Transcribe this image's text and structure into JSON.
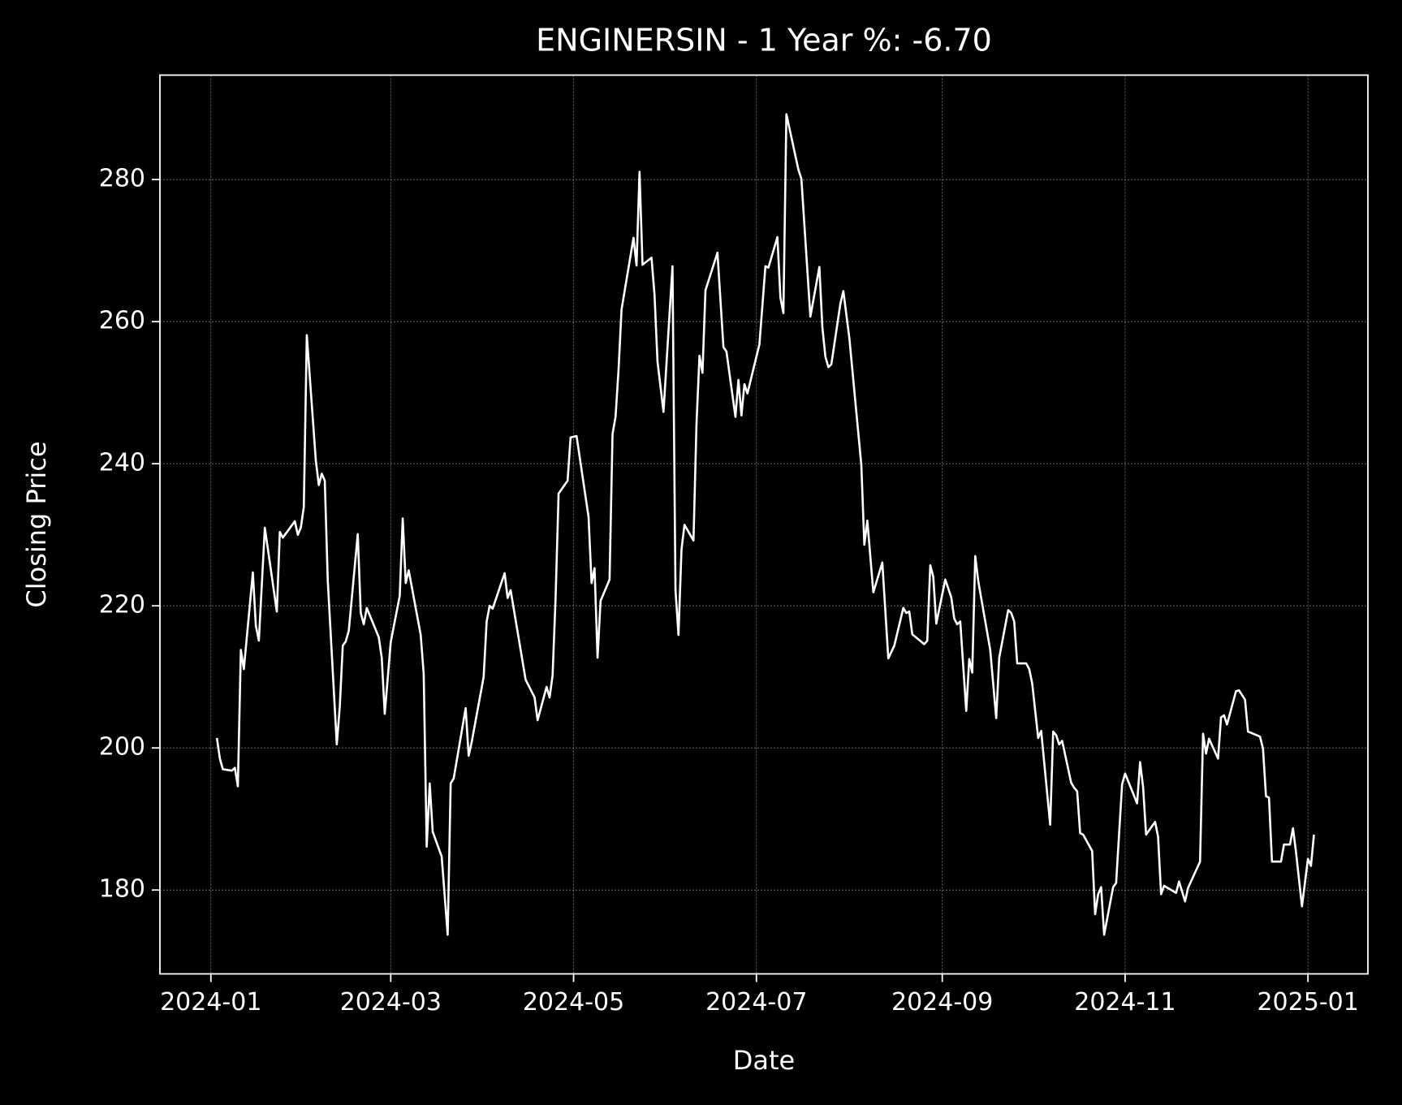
{
  "chart_data": {
    "type": "line",
    "title": "ENGINERSIN - 1 Year %: -6.70",
    "x_label": "Date",
    "y_label": "Closing Price",
    "color": "#ffffff",
    "grid": true,
    "xlim": [
      "2023-12-15",
      "2025-01-21"
    ],
    "xticks": [
      {
        "value": "2024-01-01",
        "label": "2024-01"
      },
      {
        "value": "2024-03-01",
        "label": "2024-03"
      },
      {
        "value": "2024-05-01",
        "label": "2024-05"
      },
      {
        "value": "2024-07-01",
        "label": "2024-07"
      },
      {
        "value": "2024-09-01",
        "label": "2024-09"
      },
      {
        "value": "2024-11-01",
        "label": "2024-11"
      },
      {
        "value": "2025-01-01",
        "label": "2025-01"
      }
    ],
    "ylim": [
      168.2,
      294.7
    ],
    "yticks": [
      180,
      200,
      220,
      240,
      260,
      280
    ],
    "x": [
      "2024-01-03",
      "2024-01-04",
      "2024-01-05",
      "2024-01-08",
      "2024-01-09",
      "2024-01-10",
      "2024-01-11",
      "2024-01-12",
      "2024-01-15",
      "2024-01-16",
      "2024-01-17",
      "2024-01-19",
      "2024-01-23",
      "2024-01-24",
      "2024-01-25",
      "2024-01-29",
      "2024-01-30",
      "2024-01-31",
      "2024-02-01",
      "2024-02-02",
      "2024-02-05",
      "2024-02-06",
      "2024-02-07",
      "2024-02-08",
      "2024-02-09",
      "2024-02-12",
      "2024-02-13",
      "2024-02-14",
      "2024-02-15",
      "2024-02-16",
      "2024-02-19",
      "2024-02-20",
      "2024-02-21",
      "2024-02-22",
      "2024-02-26",
      "2024-02-27",
      "2024-02-28",
      "2024-03-01",
      "2024-03-04",
      "2024-03-05",
      "2024-03-06",
      "2024-03-07",
      "2024-03-11",
      "2024-03-12",
      "2024-03-13",
      "2024-03-14",
      "2024-03-15",
      "2024-03-18",
      "2024-03-20",
      "2024-03-21",
      "2024-03-22",
      "2024-03-26",
      "2024-03-27",
      "2024-03-28",
      "2024-04-01",
      "2024-04-02",
      "2024-04-03",
      "2024-04-04",
      "2024-04-08",
      "2024-04-09",
      "2024-04-10",
      "2024-04-15",
      "2024-04-18",
      "2024-04-19",
      "2024-04-22",
      "2024-04-23",
      "2024-04-24",
      "2024-04-25",
      "2024-04-26",
      "2024-04-29",
      "2024-04-30",
      "2024-05-02",
      "2024-05-06",
      "2024-05-07",
      "2024-05-08",
      "2024-05-09",
      "2024-05-10",
      "2024-05-13",
      "2024-05-14",
      "2024-05-15",
      "2024-05-16",
      "2024-05-17",
      "2024-05-21",
      "2024-05-22",
      "2024-05-23",
      "2024-05-24",
      "2024-05-27",
      "2024-05-28",
      "2024-05-29",
      "2024-05-31",
      "2024-06-03",
      "2024-06-04",
      "2024-06-05",
      "2024-06-06",
      "2024-06-07",
      "2024-06-10",
      "2024-06-11",
      "2024-06-12",
      "2024-06-13",
      "2024-06-14",
      "2024-06-18",
      "2024-06-20",
      "2024-06-21",
      "2024-06-24",
      "2024-06-25",
      "2024-06-26",
      "2024-06-27",
      "2024-06-28",
      "2024-07-02",
      "2024-07-04",
      "2024-07-05",
      "2024-07-08",
      "2024-07-09",
      "2024-07-10",
      "2024-07-11",
      "2024-07-15",
      "2024-07-16",
      "2024-07-19",
      "2024-07-22",
      "2024-07-23",
      "2024-07-24",
      "2024-07-25",
      "2024-07-26",
      "2024-07-29",
      "2024-07-30",
      "2024-08-01",
      "2024-08-05",
      "2024-08-06",
      "2024-08-07",
      "2024-08-09",
      "2024-08-12",
      "2024-08-14",
      "2024-08-16",
      "2024-08-19",
      "2024-08-20",
      "2024-08-21",
      "2024-08-22",
      "2024-08-26",
      "2024-08-27",
      "2024-08-28",
      "2024-08-29",
      "2024-08-30",
      "2024-09-02",
      "2024-09-04",
      "2024-09-05",
      "2024-09-06",
      "2024-09-07",
      "2024-09-09",
      "2024-09-10",
      "2024-09-11",
      "2024-09-12",
      "2024-09-13",
      "2024-09-17",
      "2024-09-19",
      "2024-09-20",
      "2024-09-23",
      "2024-09-24",
      "2024-09-25",
      "2024-09-26",
      "2024-09-29",
      "2024-09-30",
      "2024-10-01",
      "2024-10-03",
      "2024-10-04",
      "2024-10-07",
      "2024-10-08",
      "2024-10-09",
      "2024-10-10",
      "2024-10-11",
      "2024-10-14",
      "2024-10-15",
      "2024-10-16",
      "2024-10-17",
      "2024-10-18",
      "2024-10-21",
      "2024-10-22",
      "2024-10-23",
      "2024-10-24",
      "2024-10-25",
      "2024-10-28",
      "2024-10-29",
      "2024-10-31",
      "2024-11-01",
      "2024-11-05",
      "2024-11-06",
      "2024-11-07",
      "2024-11-08",
      "2024-11-11",
      "2024-11-12",
      "2024-11-13",
      "2024-11-14",
      "2024-11-18",
      "2024-11-19",
      "2024-11-21",
      "2024-11-22",
      "2024-11-26",
      "2024-11-27",
      "2024-11-28",
      "2024-11-29",
      "2024-12-02",
      "2024-12-03",
      "2024-12-04",
      "2024-12-05",
      "2024-12-08",
      "2024-12-09",
      "2024-12-11",
      "2024-12-12",
      "2024-12-16",
      "2024-12-17",
      "2024-12-18",
      "2024-12-19",
      "2024-12-20",
      "2024-12-23",
      "2024-12-24",
      "2024-12-26",
      "2024-12-27",
      "2024-12-28",
      "2024-12-30",
      "2025-01-01",
      "2025-01-02",
      "2025-01-03"
    ],
    "values": [
      201.4,
      198.5,
      197,
      196.8,
      197.2,
      194.6,
      213.8,
      211.1,
      224.7,
      217.2,
      215.1,
      231,
      219.2,
      230.4,
      229.6,
      231.9,
      230,
      231,
      233.9,
      258.1,
      240.5,
      237,
      238.6,
      237.6,
      223.5,
      200.5,
      205.8,
      214.4,
      215,
      216.5,
      230.1,
      219,
      217.4,
      219.7,
      215.6,
      212.7,
      204.8,
      214.9,
      221.4,
      232.3,
      223.2,
      225,
      215.9,
      210.4,
      186.1,
      195,
      188.2,
      184.7,
      173.7,
      195,
      195.7,
      205.6,
      198.9,
      200.8,
      210,
      217.8,
      220,
      219.6,
      224.6,
      221.1,
      222.2,
      209.6,
      207.1,
      203.9,
      208.6,
      207.1,
      210.2,
      221.1,
      235.8,
      237.6,
      243.7,
      243.9,
      232.5,
      223.2,
      225.3,
      212.7,
      220.7,
      223.7,
      244.2,
      246.6,
      253.2,
      261.7,
      271.8,
      267.9,
      281.1,
      268,
      269,
      263.8,
      254.4,
      247.3,
      267.8,
      222.2,
      215.9,
      227.9,
      231.4,
      229.2,
      245.5,
      255.2,
      252.8,
      264.4,
      269.7,
      256.4,
      255.8,
      246.6,
      251.8,
      246.8,
      251.2,
      249.9,
      256.8,
      267.8,
      267.6,
      271.9,
      263.4,
      261.2,
      289.2,
      281.4,
      280.1,
      260.7,
      267.7,
      259.2,
      255.1,
      253.6,
      254,
      262.5,
      264.3,
      257.7,
      239.8,
      228.6,
      232,
      221.9,
      226.1,
      212.6,
      214.4,
      219.7,
      219,
      219.2,
      216,
      214.6,
      215.1,
      225.7,
      224.1,
      217.5,
      223.7,
      221.2,
      218.2,
      217.4,
      217.8,
      205.2,
      212.5,
      210.6,
      227,
      223.5,
      213.8,
      204.2,
      212.7,
      219.4,
      219,
      217.8,
      211.9,
      211.9,
      211.1,
      209.1,
      201.4,
      202.4,
      189.2,
      202.3,
      201.8,
      200.5,
      201,
      195.1,
      194.4,
      193.9,
      188,
      187.8,
      185.5,
      176.6,
      179.4,
      180.4,
      173.7,
      180.4,
      181,
      194.9,
      196.4,
      192.2,
      198,
      194.5,
      187.8,
      189.6,
      187.5,
      179.4,
      180.6,
      179.6,
      181.2,
      178.4,
      180.3,
      184,
      202,
      199.2,
      201.3,
      198.5,
      204.3,
      204.6,
      203.3,
      208,
      208.1,
      206.8,
      202.3,
      201.6,
      199.9,
      193.2,
      193,
      184,
      184,
      186.4,
      186.4,
      188.7,
      185.4,
      177.7,
      184.4,
      183.4,
      187.8
    ]
  }
}
